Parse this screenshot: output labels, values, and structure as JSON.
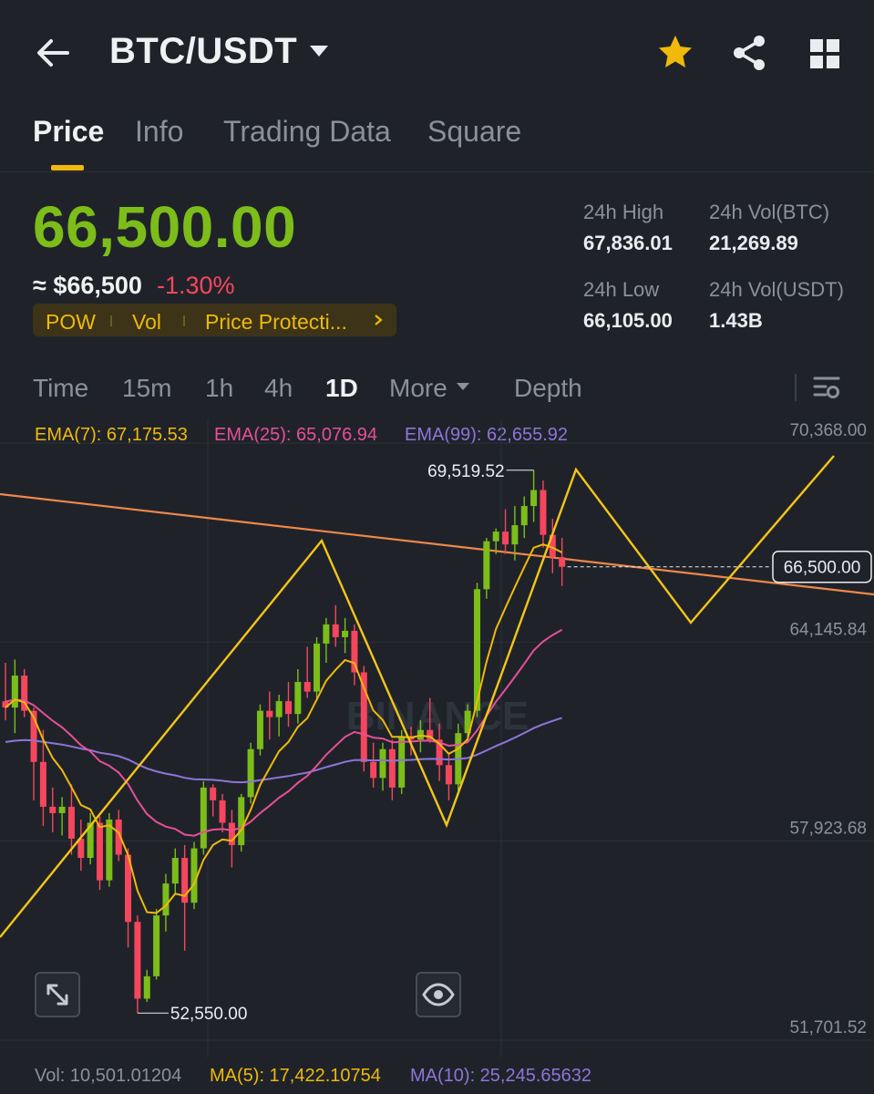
{
  "header": {
    "title": "BTC/USDT",
    "icons": [
      "back-arrow-icon",
      "caret-down-icon",
      "star-icon",
      "share-icon",
      "grid-icon"
    ]
  },
  "tabs": [
    {
      "label": "Price",
      "active": true
    },
    {
      "label": "Info"
    },
    {
      "label": "Trading Data"
    },
    {
      "label": "Square"
    }
  ],
  "price": {
    "last": "66,500.00",
    "fiat": "≈ $66,500",
    "change": "-1.30%",
    "tags": [
      "POW",
      "Vol",
      "Price Protecti..."
    ]
  },
  "stats": {
    "high_label": "24h High",
    "high_value": "67,836.01",
    "low_label": "24h Low",
    "low_value": "66,105.00",
    "vol_btc_label": "24h Vol(BTC)",
    "vol_btc_value": "21,269.89",
    "vol_usdt_label": "24h Vol(USDT)",
    "vol_usdt_value": "1.43B"
  },
  "timeframes": {
    "items": [
      "Time",
      "15m",
      "1h",
      "4h",
      "1D",
      "More",
      "Depth"
    ],
    "active": "1D"
  },
  "ema_legend": {
    "ema7": "EMA(7): 67,175.53",
    "ema25": "EMA(25): 65,076.94",
    "ema99": "EMA(99): 62,655.92"
  },
  "chart": {
    "axis_labels": [
      "70,368.00",
      "64,145.84",
      "57,923.68",
      "51,701.52"
    ],
    "current_price_label": "66,500.00",
    "high_marker": "69,519.52",
    "low_marker": "52,550.00",
    "watermark": "BINANCE"
  },
  "volume_legend": {
    "vol": "Vol: 10,501.01204",
    "ma5": "MA(5): 17,422.10754",
    "ma10": "MA(10): 25,245.65632"
  },
  "colors": {
    "up": "#7cbd1a",
    "down": "#f6465d",
    "accent": "#f0b90b",
    "ema7": "#f0b90b",
    "ema25": "#e74f98",
    "ema99": "#8f74d9",
    "trendline": "#f0874a",
    "zigzag": "#f5c518"
  },
  "chart_data": {
    "type": "candlestick",
    "y_axis_ticks": [
      70368.0,
      64145.84,
      57923.68,
      51701.52
    ],
    "ylim": [
      51701.52,
      70368.0
    ],
    "last_price": 66500.0,
    "annotated_high": 69519.52,
    "annotated_low": 52550.0,
    "candles": [
      [
        62300,
        63500,
        61700,
        62100
      ],
      [
        62100,
        63600,
        61300,
        63100
      ],
      [
        63100,
        63300,
        61800,
        62000
      ],
      [
        62000,
        62100,
        59200,
        60400
      ],
      [
        60400,
        61400,
        58400,
        59000
      ],
      [
        59000,
        59600,
        58200,
        58800
      ],
      [
        58800,
        59300,
        58100,
        59000
      ],
      [
        59000,
        59700,
        57500,
        58000
      ],
      [
        58000,
        58600,
        57000,
        57400
      ],
      [
        57400,
        58800,
        57200,
        58500
      ],
      [
        58500,
        58700,
        56400,
        56700
      ],
      [
        56700,
        58800,
        56500,
        58600
      ],
      [
        58600,
        58900,
        57300,
        57500
      ],
      [
        57500,
        57700,
        54600,
        55400
      ],
      [
        55400,
        55600,
        52550,
        53000
      ],
      [
        53000,
        53900,
        52900,
        53700
      ],
      [
        53700,
        55800,
        53600,
        55600
      ],
      [
        55600,
        56900,
        55100,
        56600
      ],
      [
        56600,
        57700,
        56300,
        57400
      ],
      [
        57400,
        57800,
        54500,
        56000
      ],
      [
        56000,
        57900,
        55800,
        57700
      ],
      [
        57700,
        59800,
        57500,
        59600
      ],
      [
        59600,
        59700,
        58700,
        59200
      ],
      [
        59200,
        59400,
        58200,
        58500
      ],
      [
        58500,
        58900,
        57100,
        57800
      ],
      [
        57800,
        59400,
        57600,
        59300
      ],
      [
        59300,
        61000,
        59100,
        60800
      ],
      [
        60800,
        62200,
        60600,
        62000
      ],
      [
        62000,
        62600,
        61100,
        61800
      ],
      [
        61800,
        62500,
        61200,
        62300
      ],
      [
        62300,
        62900,
        61500,
        61900
      ],
      [
        61900,
        63300,
        61600,
        62900
      ],
      [
        62900,
        64000,
        62400,
        62600
      ],
      [
        62600,
        64300,
        62400,
        64100
      ],
      [
        64100,
        64900,
        63500,
        64700
      ],
      [
        64700,
        65300,
        64000,
        64300
      ],
      [
        64300,
        64900,
        63800,
        64500
      ],
      [
        64500,
        64700,
        62800,
        63200
      ],
      [
        63200,
        63400,
        60100,
        60400
      ],
      [
        60400,
        61000,
        59600,
        59900
      ],
      [
        59900,
        61000,
        59500,
        60800
      ],
      [
        60800,
        61100,
        59200,
        59600
      ],
      [
        59600,
        61400,
        59400,
        61200
      ],
      [
        61200,
        61500,
        60600,
        61100
      ],
      [
        61100,
        61700,
        60700,
        61400
      ],
      [
        61400,
        62400,
        61000,
        61100
      ],
      [
        61100,
        61600,
        59800,
        60300
      ],
      [
        60300,
        60700,
        59200,
        59700
      ],
      [
        59700,
        61600,
        59500,
        61300
      ],
      [
        61300,
        62200,
        61000,
        62000
      ],
      [
        62000,
        66000,
        61800,
        65800
      ],
      [
        65800,
        67400,
        65500,
        67300
      ],
      [
        67300,
        67700,
        66900,
        67600
      ],
      [
        67600,
        68300,
        66900,
        67200
      ],
      [
        67200,
        68400,
        66700,
        67800
      ],
      [
        67800,
        68700,
        67400,
        68400
      ],
      [
        68400,
        69519.52,
        67900,
        68900
      ],
      [
        68900,
        69200,
        67100,
        67500
      ],
      [
        67500,
        68000,
        66300,
        66800
      ],
      [
        66800,
        67400,
        65900,
        66500
      ]
    ]
  }
}
